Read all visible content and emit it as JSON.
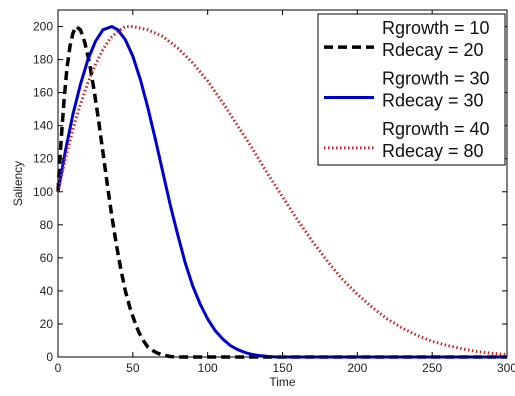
{
  "chart_data": {
    "type": "line",
    "title": "",
    "xlabel": "Time",
    "ylabel": "Saliency",
    "xlim": [
      0,
      300
    ],
    "ylim": [
      0,
      210
    ],
    "x_ticks": [
      0,
      50,
      100,
      150,
      200,
      250,
      300
    ],
    "y_ticks": [
      0,
      20,
      40,
      60,
      80,
      100,
      120,
      140,
      160,
      180,
      200
    ],
    "grid": false,
    "legend_position": "top-right",
    "series": [
      {
        "legend_lines": [
          "Rgrowth = 10",
          "Rdecay = 20"
        ],
        "color": "#000000",
        "line_style": "dashed",
        "points": [
          [
            0,
            100
          ],
          [
            2,
            130
          ],
          [
            4,
            155
          ],
          [
            6,
            175
          ],
          [
            8,
            188
          ],
          [
            10,
            196
          ],
          [
            12,
            200
          ],
          [
            15,
            198
          ],
          [
            18,
            190
          ],
          [
            21,
            178
          ],
          [
            24,
            162
          ],
          [
            27,
            144
          ],
          [
            30,
            124
          ],
          [
            33,
            104
          ],
          [
            36,
            85
          ],
          [
            39,
            68
          ],
          [
            42,
            53
          ],
          [
            45,
            40
          ],
          [
            48,
            30
          ],
          [
            51,
            22
          ],
          [
            54,
            15
          ],
          [
            57,
            10
          ],
          [
            60,
            6
          ],
          [
            63,
            4
          ],
          [
            66,
            2.5
          ],
          [
            70,
            1.2
          ],
          [
            75,
            0.3
          ],
          [
            80,
            0
          ],
          [
            300,
            0
          ]
        ]
      },
      {
        "legend_lines": [
          "Rgrowth = 30",
          "Rdecay = 30"
        ],
        "color": "#0000cc",
        "line_style": "solid",
        "points": [
          [
            0,
            100
          ],
          [
            5,
            125
          ],
          [
            10,
            147
          ],
          [
            15,
            165
          ],
          [
            20,
            180
          ],
          [
            25,
            191
          ],
          [
            30,
            198
          ],
          [
            36,
            200
          ],
          [
            40,
            198
          ],
          [
            45,
            192
          ],
          [
            50,
            182
          ],
          [
            55,
            168
          ],
          [
            60,
            151
          ],
          [
            65,
            132
          ],
          [
            70,
            112
          ],
          [
            75,
            92
          ],
          [
            80,
            74
          ],
          [
            85,
            57
          ],
          [
            90,
            43
          ],
          [
            95,
            32
          ],
          [
            100,
            23
          ],
          [
            105,
            16
          ],
          [
            110,
            11
          ],
          [
            115,
            7
          ],
          [
            120,
            4.5
          ],
          [
            125,
            2.7
          ],
          [
            130,
            1.5
          ],
          [
            135,
            0.8
          ],
          [
            140,
            0.4
          ],
          [
            145,
            0.1
          ],
          [
            150,
            0
          ],
          [
            300,
            0
          ]
        ]
      },
      {
        "legend_lines": [
          "Rgrowth = 40",
          "Rdecay = 80"
        ],
        "color": "#cc2222",
        "line_style": "dotted",
        "points": [
          [
            0,
            100
          ],
          [
            5,
            120
          ],
          [
            10,
            138
          ],
          [
            15,
            153
          ],
          [
            20,
            166
          ],
          [
            25,
            177
          ],
          [
            30,
            186
          ],
          [
            35,
            193
          ],
          [
            40,
            197
          ],
          [
            45,
            200
          ],
          [
            50,
            200
          ],
          [
            60,
            198
          ],
          [
            70,
            194
          ],
          [
            80,
            187
          ],
          [
            90,
            178
          ],
          [
            100,
            167
          ],
          [
            110,
            154
          ],
          [
            120,
            140
          ],
          [
            130,
            126
          ],
          [
            140,
            111
          ],
          [
            150,
            97
          ],
          [
            160,
            83
          ],
          [
            170,
            70
          ],
          [
            180,
            58
          ],
          [
            190,
            47
          ],
          [
            200,
            38
          ],
          [
            210,
            30
          ],
          [
            220,
            23
          ],
          [
            230,
            17.5
          ],
          [
            240,
            13
          ],
          [
            250,
            9.5
          ],
          [
            260,
            7
          ],
          [
            270,
            5
          ],
          [
            280,
            3.3
          ],
          [
            290,
            2.2
          ],
          [
            300,
            1.5
          ]
        ]
      }
    ]
  }
}
